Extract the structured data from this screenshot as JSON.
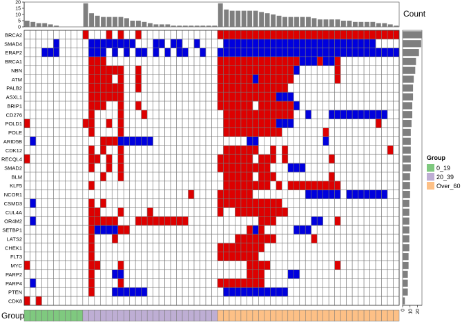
{
  "chart_data": {
    "type": "heatmap",
    "genes": [
      "BRCA2",
      "SMAD4",
      "ERAP2",
      "BRCA1",
      "NBN",
      "ATM",
      "PALB2",
      "ASXL1",
      "BRIP1",
      "CD276",
      "POLD1",
      "POLE",
      "ARID5B",
      "CDK12",
      "RECQL4",
      "SMAD2",
      "BLM",
      "KLF5",
      "NCOR1",
      "CSMD3",
      "CUL4A",
      "OR4M2",
      "SETBP1",
      "LATS2",
      "CHEK1",
      "FLT3",
      "MYC",
      "PARP2",
      "PARP4",
      "PTEN",
      "CDK8"
    ],
    "samples": 64,
    "top_annotation_label": "Count",
    "top_counts": [
      5,
      4,
      3,
      3,
      2,
      1,
      0,
      0,
      0,
      0,
      19,
      11,
      9,
      8,
      8,
      8,
      8,
      7,
      5,
      5,
      4,
      3,
      2,
      2,
      2,
      1,
      1,
      1,
      1,
      1,
      1,
      1,
      1,
      19,
      14,
      13,
      13,
      13,
      13,
      13,
      12,
      11,
      10,
      9,
      8,
      8,
      8,
      8,
      8,
      7,
      6,
      6,
      6,
      6,
      5,
      5,
      4,
      4,
      4,
      4,
      3,
      3,
      2,
      1
    ],
    "top_axis_ticks": [
      "0",
      "5",
      "10",
      "15",
      "20"
    ],
    "right_annotation_counts": [
      26,
      25,
      22,
      18,
      17,
      15,
      14,
      14,
      13,
      13,
      12,
      11,
      11,
      11,
      11,
      11,
      10,
      10,
      10,
      9,
      9,
      9,
      9,
      9,
      9,
      8,
      8,
      7,
      7,
      7,
      3
    ],
    "right_axis_ticks": [
      "0",
      "10",
      "20"
    ],
    "bottom_annotation_label": "Group",
    "group_assignment": [
      "0_19",
      "0_19",
      "0_19",
      "0_19",
      "0_19",
      "0_19",
      "0_19",
      "0_19",
      "0_19",
      "0_19",
      "20_39",
      "20_39",
      "20_39",
      "20_39",
      "20_39",
      "20_39",
      "20_39",
      "20_39",
      "20_39",
      "20_39",
      "20_39",
      "20_39",
      "20_39",
      "20_39",
      "20_39",
      "20_39",
      "20_39",
      "20_39",
      "20_39",
      "20_39",
      "20_39",
      "20_39",
      "20_39",
      "Over_60",
      "Over_60",
      "Over_60",
      "Over_60",
      "Over_60",
      "Over_60",
      "Over_60",
      "Over_60",
      "Over_60",
      "Over_60",
      "Over_60",
      "Over_60",
      "Over_60",
      "Over_60",
      "Over_60",
      "Over_60",
      "Over_60",
      "Over_60",
      "Over_60",
      "Over_60",
      "Over_60",
      "Over_60",
      "Over_60",
      "Over_60",
      "Over_60",
      "Over_60",
      "Over_60",
      "Over_60",
      "Over_60",
      "Over_60",
      "Over_60"
    ],
    "legend": {
      "title": "Group",
      "entries": [
        {
          "label": "0_19",
          "color": "#7fc97f"
        },
        {
          "label": "20_39",
          "color": "#beaed4"
        },
        {
          "label": "Over_60",
          "color": "#fdc086"
        }
      ]
    },
    "colors": {
      "red": "#dd0000",
      "blue": "#0000dd",
      "empty": "#ffffff",
      "grid": "#777777",
      "bar": "#7f7f7f"
    },
    "cells": {
      "BRCA2": {
        "red": [
          10,
          14,
          16,
          19,
          33,
          34,
          35,
          36,
          37,
          38,
          39,
          40,
          41,
          42,
          43,
          44,
          45,
          46,
          47,
          48,
          49,
          50,
          51,
          52,
          53,
          54,
          55,
          56,
          57,
          58,
          59,
          60,
          61,
          62,
          63
        ],
        "blue": []
      },
      "SMAD4": {
        "red": [],
        "blue": [
          5,
          11,
          12,
          13,
          14,
          15,
          16,
          17,
          18,
          22,
          23,
          25,
          26,
          29,
          34,
          35,
          36,
          37,
          38,
          39,
          40,
          41,
          42,
          43,
          44,
          45,
          46,
          47,
          48,
          49,
          50,
          51,
          52,
          53,
          54,
          55,
          56,
          57,
          58,
          59
        ]
      },
      "ERAP2": {
        "red": [],
        "blue": [
          3,
          4,
          5,
          11,
          12,
          13,
          15,
          17,
          19,
          20,
          22,
          24,
          26,
          27,
          30,
          33,
          34,
          35,
          36,
          37,
          38,
          39,
          40,
          41,
          42,
          43,
          44,
          45,
          46,
          47,
          48,
          49,
          50,
          51,
          52,
          53,
          54,
          55,
          56,
          57,
          58,
          59,
          60,
          61,
          62,
          63
        ]
      },
      "BRCA1": {
        "red": [
          11,
          12,
          13,
          33,
          34,
          35,
          36,
          37,
          38,
          39,
          40,
          41,
          42,
          43,
          44,
          45,
          46,
          50,
          53
        ],
        "blue": [
          47,
          48,
          49,
          51,
          52
        ]
      },
      "NBN": {
        "red": [
          11,
          12,
          13,
          14,
          15,
          16,
          19,
          33,
          34,
          35,
          36,
          37,
          38,
          39,
          40,
          41,
          42,
          43,
          44,
          45,
          53
        ],
        "blue": [
          46
        ]
      },
      "ATM": {
        "red": [
          11,
          12,
          13,
          14,
          16,
          19,
          33,
          34,
          35,
          36,
          37,
          38,
          40,
          41,
          42,
          43,
          44,
          45,
          53
        ],
        "blue": [
          39
        ]
      },
      "PALB2": {
        "red": [
          11,
          12,
          13,
          14,
          15,
          16,
          19,
          33,
          34,
          35,
          36,
          37,
          38,
          39,
          40,
          41,
          42,
          43,
          44
        ],
        "blue": []
      },
      "ASXL1": {
        "red": [
          11,
          12,
          13,
          14,
          15,
          16,
          33,
          34,
          35,
          36,
          37,
          38,
          39,
          40,
          41,
          42
        ],
        "blue": [
          43,
          44,
          45
        ]
      },
      "BRIP1": {
        "red": [
          11,
          12,
          13,
          16,
          19,
          33,
          34,
          35,
          36,
          37,
          38,
          40,
          41,
          42,
          43,
          44,
          45
        ],
        "blue": [
          46
        ]
      },
      "CD276": {
        "red": [
          11,
          16,
          20,
          34,
          35,
          36,
          37,
          38,
          39,
          40,
          41,
          42,
          43,
          44,
          45
        ],
        "blue": [
          48,
          52,
          53,
          54,
          55,
          56,
          57,
          58,
          59,
          60,
          61
        ]
      },
      "POLD1": {
        "red": [
          0,
          10,
          11,
          14,
          16,
          34,
          35,
          36,
          37,
          38,
          39,
          40,
          41,
          42,
          60
        ],
        "blue": [
          43,
          44,
          45
        ]
      },
      "POLE": {
        "red": [
          11,
          16,
          34,
          35,
          36,
          37,
          38,
          39,
          40,
          41,
          42,
          43,
          51
        ],
        "blue": []
      },
      "ARID5B": {
        "red": [
          13,
          14,
          15
        ],
        "blue": [
          1,
          15,
          16,
          17,
          18,
          19,
          20,
          21,
          38,
          39,
          51
        ]
      },
      "CDK12": {
        "red": [
          11,
          13,
          16,
          34,
          35,
          36,
          37,
          38,
          39,
          42,
          44,
          62
        ],
        "blue": []
      },
      "RECQL4": {
        "red": [
          0,
          11,
          12,
          14,
          16,
          33,
          34,
          35,
          36,
          37,
          38,
          40,
          41,
          42,
          44,
          52
        ],
        "blue": []
      },
      "SMAD2": {
        "red": [
          11,
          14,
          16,
          33,
          34,
          35,
          36,
          37,
          38,
          39,
          40,
          41
        ],
        "blue": [
          45,
          46,
          47
        ]
      },
      "BLM": {
        "red": [
          13,
          16,
          34,
          35,
          36,
          37,
          38,
          40,
          41,
          42,
          52
        ],
        "blue": []
      },
      "KLF5": {
        "red": [
          11,
          34,
          35,
          36,
          37,
          38,
          39,
          40,
          41,
          43,
          45,
          46,
          47,
          48,
          49,
          50,
          51,
          52,
          53
        ],
        "blue": []
      },
      "NCOR1": {
        "red": [
          28,
          33,
          34,
          35,
          36,
          37,
          38
        ],
        "blue": [
          48,
          49,
          50,
          51,
          52,
          53,
          55,
          56,
          57,
          58,
          59,
          60,
          61
        ]
      },
      "CSMD3": {
        "red": [
          11,
          13,
          33,
          34,
          35,
          36,
          37,
          38,
          39,
          40,
          41,
          42,
          43
        ],
        "blue": [
          1
        ]
      },
      "CUL4A": {
        "red": [
          11,
          12,
          16,
          21,
          33,
          36,
          37,
          38,
          39,
          40,
          41,
          42,
          43,
          44
        ],
        "blue": []
      },
      "OR4M2": {
        "red": [
          11,
          12,
          13,
          14,
          15,
          19,
          20,
          21,
          22,
          23,
          24,
          25,
          26,
          27,
          40,
          41,
          42,
          53
        ],
        "blue": [
          1,
          49,
          50
        ]
      },
      "SETBP1": {
        "red": [
          11,
          16,
          17,
          38,
          40
        ],
        "blue": [
          12,
          13,
          14,
          15,
          39,
          46,
          47,
          48
        ]
      },
      "LATS2": {
        "red": [
          11,
          15,
          36,
          37,
          38,
          39,
          40,
          41,
          42,
          49
        ],
        "blue": []
      },
      "CHEK1": {
        "red": [
          11,
          33,
          34,
          35,
          36,
          37,
          38,
          39,
          40
        ],
        "blue": []
      },
      "FLT3": {
        "red": [
          11,
          33,
          34,
          35,
          36,
          37,
          38,
          39
        ],
        "blue": []
      },
      "MYC": {
        "red": [
          0,
          11,
          12,
          16,
          38,
          39,
          40,
          41,
          53
        ],
        "blue": []
      },
      "PARP2": {
        "red": [
          11,
          38,
          39,
          40
        ],
        "blue": [
          15,
          16,
          45,
          46
        ]
      },
      "PARP4": {
        "red": [
          11,
          16,
          33,
          34,
          35,
          36,
          37,
          38,
          39,
          40
        ],
        "blue": [
          1
        ]
      },
      "PTEN": {
        "red": [
          11
        ],
        "blue": [
          15,
          16,
          17,
          18,
          19,
          20,
          34,
          35,
          36,
          37,
          38,
          39,
          40,
          41,
          42,
          43,
          44
        ]
      },
      "CDK8": {
        "red": [
          0,
          2
        ],
        "blue": []
      }
    }
  }
}
